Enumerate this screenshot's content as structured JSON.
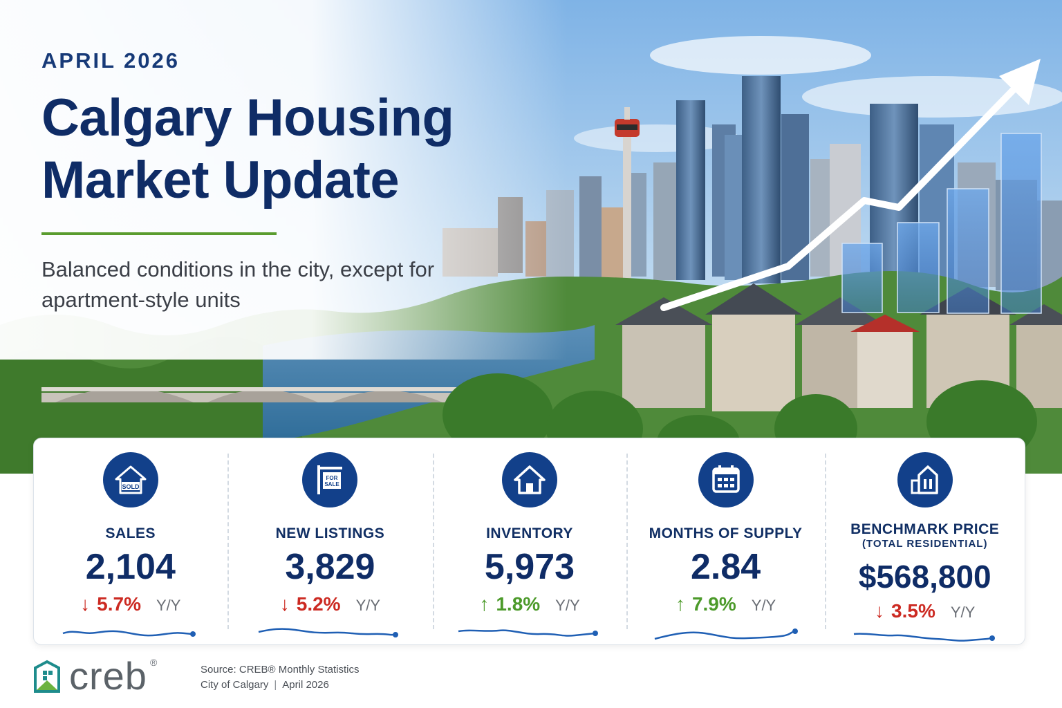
{
  "header": {
    "date": "APRIL 2026",
    "title_line1": "Calgary Housing",
    "title_line2": "Market Update",
    "tagline": "Balanced conditions in the city, except for apartment-style units"
  },
  "colors": {
    "navy": "#0f2c66",
    "icon_bg": "#12408a",
    "accent_green": "#5a9c2e",
    "down_red": "#cc2a22",
    "up_green": "#4c9a2a",
    "spark_blue": "#1f5fb4"
  },
  "stats": [
    {
      "icon": "sold-sign-icon",
      "label": "SALES",
      "sublabel": "",
      "value": "2,104",
      "direction": "down",
      "arrow": "↓",
      "change": "5.7%",
      "unit": "Y/Y",
      "icon_text": "SOLD"
    },
    {
      "icon": "for-sale-sign-icon",
      "label": "NEW LISTINGS",
      "sublabel": "",
      "value": "3,829",
      "direction": "down",
      "arrow": "↓",
      "change": "5.2%",
      "unit": "Y/Y",
      "icon_text": "FOR SALE"
    },
    {
      "icon": "house-icon",
      "label": "INVENTORY",
      "sublabel": "",
      "value": "5,973",
      "direction": "up",
      "arrow": "↑",
      "change": "1.8%",
      "unit": "Y/Y",
      "icon_text": ""
    },
    {
      "icon": "calendar-icon",
      "label": "MONTHS OF SUPPLY",
      "sublabel": "",
      "value": "2.84",
      "direction": "up",
      "arrow": "↑",
      "change": "7.9%",
      "unit": "Y/Y",
      "icon_text": ""
    },
    {
      "icon": "buildings-icon",
      "label": "BENCHMARK PRICE",
      "sublabel": "(TOTAL RESIDENTIAL)",
      "value": "$568,800",
      "direction": "down",
      "arrow": "↓",
      "change": "3.5%",
      "unit": "Y/Y",
      "icon_text": ""
    }
  ],
  "footer": {
    "logo_text": "creb",
    "logo_mark": "®",
    "source_line1": "Source: CREB® Monthly Statistics",
    "source_city": "City of Calgary",
    "source_sep": "|",
    "source_date": "April 2026"
  }
}
